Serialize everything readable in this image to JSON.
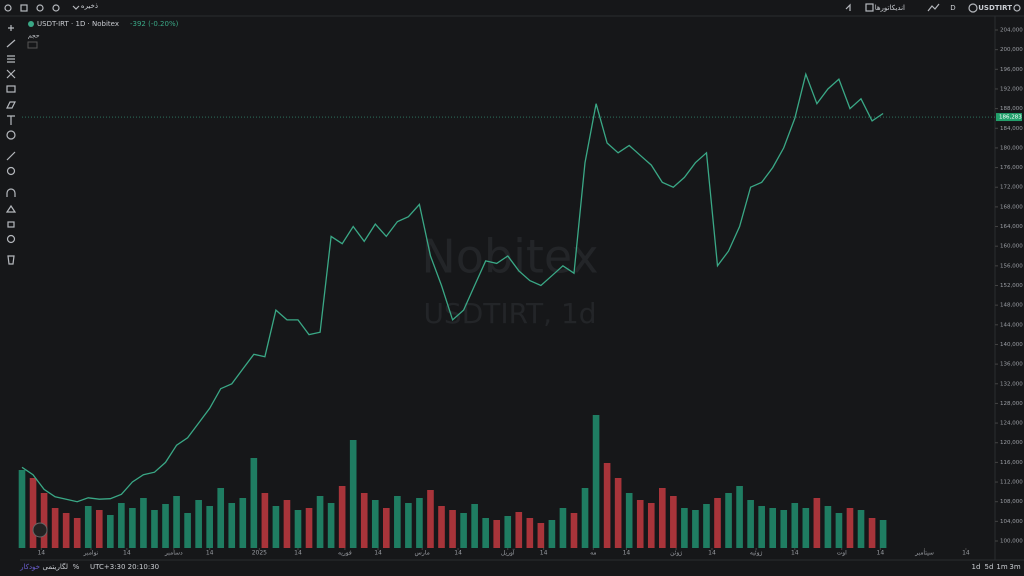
{
  "ui": {
    "symbol": "USDTIRT",
    "interval": "D",
    "indicators": "اندیکاتورها",
    "save": "ذخیره",
    "legend_title": "USDT-IRT · 1D · Nobitex",
    "legend_change": "-392 (-0.20%)",
    "volume_label": "حجم",
    "watermark": "Nobitex",
    "watermark_sub": "USDTIRT, 1d",
    "timezone": "UTC+3:30 20:10:30",
    "percent": "%",
    "log": "لگاریتمی",
    "auto": "خودکار",
    "ranges": [
      "1d",
      "5d",
      "1m",
      "3m"
    ]
  },
  "chart_data": {
    "type": "line",
    "x": [
      0,
      4,
      8,
      12,
      16,
      20,
      24,
      28,
      32,
      36,
      40,
      44,
      48,
      52,
      56,
      60,
      64,
      68,
      72,
      76,
      80,
      84,
      88,
      92,
      96,
      100,
      104,
      108,
      112,
      116,
      120,
      124,
      128,
      132,
      136,
      140,
      144,
      148,
      152,
      156,
      160,
      164,
      168,
      172,
      176,
      180,
      184,
      188,
      192,
      196,
      200,
      204,
      208,
      212,
      216,
      220,
      224,
      228,
      232,
      236,
      240,
      244,
      248,
      252,
      256,
      260,
      264,
      268,
      272,
      276,
      280,
      284,
      288,
      292,
      296,
      300,
      304,
      308,
      312
    ],
    "series": [
      {
        "name": "USDT-IRT",
        "color": "#3aa886",
        "values": [
          115000,
          113500,
          110500,
          109000,
          108500,
          108000,
          108800,
          108500,
          108600,
          109500,
          112000,
          113500,
          114000,
          116000,
          119500,
          121000,
          124000,
          127000,
          131000,
          132000,
          135000,
          138000,
          137500,
          147000,
          145000,
          145000,
          142000,
          142500,
          162000,
          160500,
          164000,
          161000,
          164500,
          162000,
          165000,
          166000,
          168500,
          158000,
          152000,
          145000,
          147000,
          152000,
          157000,
          156500,
          158000,
          155000,
          153000,
          152000,
          154000,
          156000,
          154500,
          177000,
          189000,
          181000,
          179000,
          180500,
          178500,
          176500,
          173000,
          172000,
          174000,
          177000,
          179000,
          156000,
          159000,
          164000,
          172000,
          173000,
          176000,
          180000,
          186000,
          195000,
          189000,
          192000,
          194000,
          188000,
          190000,
          185500,
          187000
        ]
      }
    ],
    "volume": {
      "up_color": "#1f7d62",
      "down_color": "#a8343a",
      "values": [
        78,
        70,
        55,
        40,
        35,
        30,
        42,
        38,
        33,
        45,
        40,
        50,
        38,
        44,
        52,
        35,
        48,
        42,
        60,
        45,
        50,
        90,
        55,
        42,
        48,
        38,
        40,
        52,
        45,
        62,
        108,
        55,
        48,
        40,
        52,
        45,
        50,
        58,
        42,
        38,
        35,
        44,
        30,
        28,
        32,
        36,
        30,
        25,
        28,
        40,
        35,
        60,
        133,
        85,
        70,
        55,
        48,
        45,
        60,
        52,
        40,
        38,
        44,
        50,
        55,
        62,
        48,
        42,
        40,
        38,
        45,
        40,
        50,
        42,
        35,
        40,
        38,
        30,
        28
      ]
    },
    "last_price": {
      "value": 186283,
      "label": "186,283"
    },
    "xlim": [
      0,
      352
    ],
    "xticks": [
      {
        "value": 7,
        "label": "14"
      },
      {
        "value": 25,
        "label": "نوامبر"
      },
      {
        "value": 38,
        "label": "14"
      },
      {
        "value": 55,
        "label": "دسامبر"
      },
      {
        "value": 68,
        "label": "14"
      },
      {
        "value": 86,
        "label": "2025"
      },
      {
        "value": 100,
        "label": "14"
      },
      {
        "value": 117,
        "label": "فوریه"
      },
      {
        "value": 129,
        "label": "14"
      },
      {
        "value": 145,
        "label": "مارس"
      },
      {
        "value": 158,
        "label": "14"
      },
      {
        "value": 176,
        "label": "آوریل"
      },
      {
        "value": 189,
        "label": "14"
      },
      {
        "value": 207,
        "label": "مه"
      },
      {
        "value": 219,
        "label": "14"
      },
      {
        "value": 237,
        "label": "ژوئن"
      },
      {
        "value": 250,
        "label": "14"
      },
      {
        "value": 266,
        "label": "ژوئیه"
      },
      {
        "value": 280,
        "label": "14"
      },
      {
        "value": 297,
        "label": "اوت"
      },
      {
        "value": 311,
        "label": "14"
      },
      {
        "value": 327,
        "label": "سپتامبر"
      },
      {
        "value": 342,
        "label": "14"
      }
    ],
    "ylim": [
      100000,
      204000
    ],
    "yticks": [
      {
        "value": 100000,
        "label": "100,000"
      },
      {
        "value": 104000,
        "label": "104,000"
      },
      {
        "value": 108000,
        "label": "108,000"
      },
      {
        "value": 112000,
        "label": "112,000"
      },
      {
        "value": 116000,
        "label": "116,000"
      },
      {
        "value": 120000,
        "label": "120,000"
      },
      {
        "value": 124000,
        "label": "124,000"
      },
      {
        "value": 128000,
        "label": "128,000"
      },
      {
        "value": 132000,
        "label": "132,000"
      },
      {
        "value": 136000,
        "label": "136,000"
      },
      {
        "value": 140000,
        "label": "140,000"
      },
      {
        "value": 144000,
        "label": "144,000"
      },
      {
        "value": 148000,
        "label": "148,000"
      },
      {
        "value": 152000,
        "label": "152,000"
      },
      {
        "value": 156000,
        "label": "156,000"
      },
      {
        "value": 160000,
        "label": "160,000"
      },
      {
        "value": 164000,
        "label": "164,000"
      },
      {
        "value": 168000,
        "label": "168,000"
      },
      {
        "value": 172000,
        "label": "172,000"
      },
      {
        "value": 176000,
        "label": "176,000"
      },
      {
        "value": 180000,
        "label": "180,000"
      },
      {
        "value": 184000,
        "label": "184,000"
      },
      {
        "value": 188000,
        "label": "188,000"
      },
      {
        "value": 192000,
        "label": "192,000"
      },
      {
        "value": 196000,
        "label": "196,000"
      },
      {
        "value": 200000,
        "label": "200,000"
      },
      {
        "value": 204000,
        "label": "204,000"
      }
    ]
  }
}
